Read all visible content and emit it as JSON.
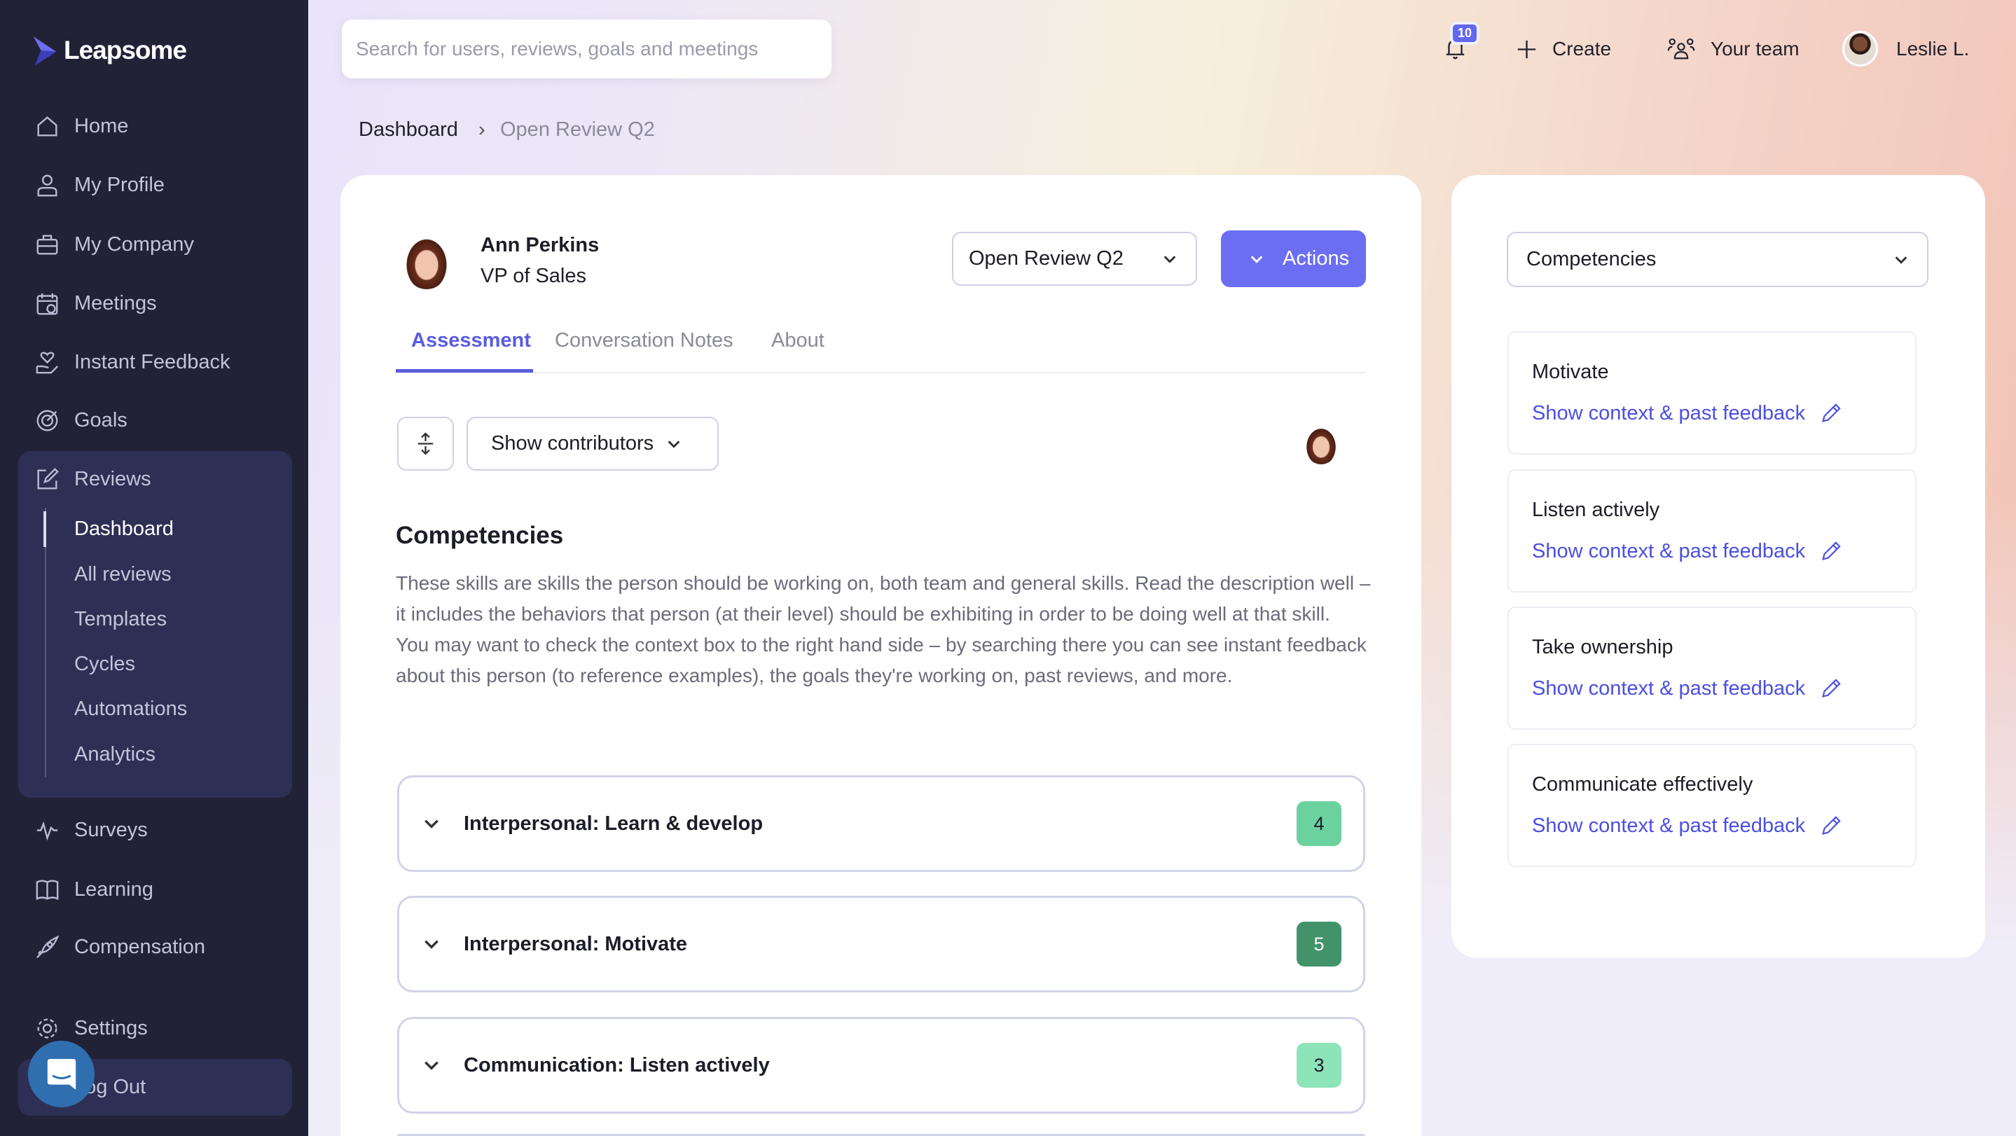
{
  "app": {
    "brand": "Leapsome"
  },
  "sidebar": {
    "items": [
      {
        "label": "Home",
        "icon": "home-icon"
      },
      {
        "label": "My Profile",
        "icon": "user-icon"
      },
      {
        "label": "My Company",
        "icon": "briefcase-icon"
      },
      {
        "label": "Meetings",
        "icon": "calendar-icon"
      },
      {
        "label": "Instant Feedback",
        "icon": "feedback-heart-icon"
      },
      {
        "label": "Goals",
        "icon": "target-icon"
      },
      {
        "label": "Reviews",
        "icon": "edit-icon"
      },
      {
        "label": "Surveys",
        "icon": "pulse-icon"
      },
      {
        "label": "Learning",
        "icon": "book-icon"
      },
      {
        "label": "Compensation",
        "icon": "rocket-icon"
      },
      {
        "label": "Settings",
        "icon": "gear-icon"
      },
      {
        "label": "Log Out",
        "icon": "logout-icon"
      }
    ],
    "reviews_sub": [
      "Dashboard",
      "All reviews",
      "Templates",
      "Cycles",
      "Automations",
      "Analytics"
    ],
    "active_sub": "Dashboard"
  },
  "header": {
    "search_placeholder": "Search for users, reviews, goals and meetings",
    "notifications_count": "10",
    "create_label": "Create",
    "team_label": "Your team",
    "user_name": "Leslie L."
  },
  "breadcrumb": {
    "root": "Dashboard",
    "current": "Open Review Q2"
  },
  "review": {
    "person_name": "Ann Perkins",
    "person_title": "VP of Sales",
    "cycle_select": "Open Review Q2",
    "actions_label": "Actions",
    "tabs": [
      "Assessment",
      "Conversation Notes",
      "About"
    ],
    "active_tab": "Assessment",
    "contributors_label": "Show contributors",
    "section_title": "Competencies",
    "description_1": "These skills are skills the person should be working on, both team and general skills. Read the description well – it includes the behaviors that person (at their level) should be exhibiting in order to be doing well at that skill.",
    "description_2": "You may want to check the context box to the right hand side – by searching there you can see instant feedback about this person (to reference examples), the goals they're working on, past reviews, and more.",
    "competencies": [
      {
        "title": "Interpersonal: Learn & develop",
        "score": "4",
        "color": "#6bd29f",
        "text_color": "#1d1d28"
      },
      {
        "title": "Interpersonal: Motivate",
        "score": "5",
        "color": "#43936a",
        "text_color": "#ffffff"
      },
      {
        "title": "Communication: Listen actively",
        "score": "3",
        "color": "#8de4b8",
        "text_color": "#1d1d28"
      }
    ]
  },
  "context": {
    "select": "Competencies",
    "link_label": "Show context & past feedback",
    "items": [
      "Motivate",
      "Listen actively",
      "Take ownership",
      "Communicate effectively"
    ]
  },
  "colors": {
    "accent": "#6366ee",
    "sidebar": "#212236",
    "link": "#4b4fe0"
  }
}
